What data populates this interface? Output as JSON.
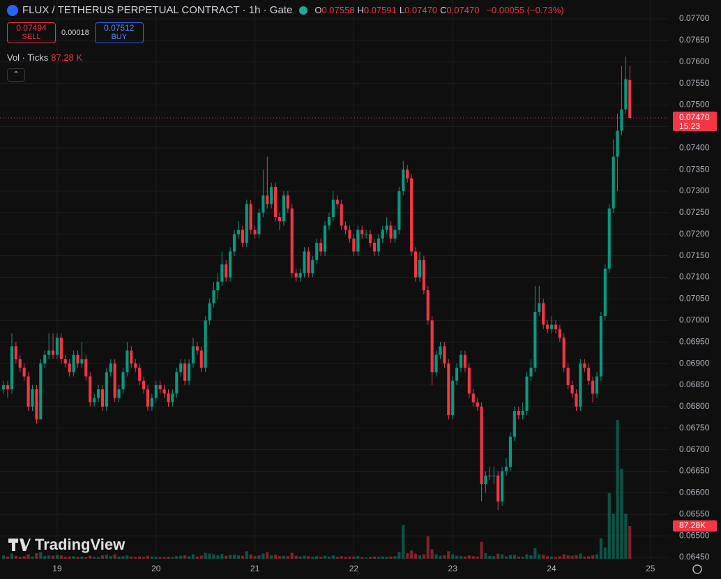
{
  "header": {
    "title": "FLUX / TETHERUS PERPETUAL CONTRACT · 1h · Gate",
    "ohlc": [
      {
        "key": "O",
        "value": "0.07558"
      },
      {
        "key": "H",
        "value": "0.07591"
      },
      {
        "key": "L",
        "value": "0.07470"
      },
      {
        "key": "C",
        "value": "0.07470"
      }
    ],
    "change": "−0.00055 (−0.73%)",
    "sell": {
      "price": "0.07494",
      "label": "SELL"
    },
    "spread": "0.00018",
    "buy": {
      "price": "0.07512",
      "label": "BUY"
    },
    "volume_legend": {
      "label": "Vol · Ticks",
      "value": "87.28 K"
    }
  },
  "brand": "TradingView",
  "chart_data": {
    "type": "candlestick",
    "up_color": "#089981",
    "down_color": "#f23645",
    "ylim": [
      0.0645,
      0.077
    ],
    "yticks": [
      {
        "value": 0.077,
        "label": "0.07700"
      },
      {
        "value": 0.0765,
        "label": "0.07650"
      },
      {
        "value": 0.076,
        "label": "0.07600"
      },
      {
        "value": 0.0755,
        "label": "0.07550"
      },
      {
        "value": 0.075,
        "label": "0.07500"
      },
      {
        "value": 0.0745,
        "label": "0.07450"
      },
      {
        "value": 0.074,
        "label": "0.07400"
      },
      {
        "value": 0.0735,
        "label": "0.07350"
      },
      {
        "value": 0.073,
        "label": "0.07300"
      },
      {
        "value": 0.0725,
        "label": "0.07250"
      },
      {
        "value": 0.072,
        "label": "0.07200"
      },
      {
        "value": 0.0715,
        "label": "0.07150"
      },
      {
        "value": 0.071,
        "label": "0.07100"
      },
      {
        "value": 0.0705,
        "label": "0.07050"
      },
      {
        "value": 0.07,
        "label": "0.07000"
      },
      {
        "value": 0.0695,
        "label": "0.06950"
      },
      {
        "value": 0.069,
        "label": "0.06900"
      },
      {
        "value": 0.0685,
        "label": "0.06850"
      },
      {
        "value": 0.068,
        "label": "0.06800"
      },
      {
        "value": 0.0675,
        "label": "0.06750"
      },
      {
        "value": 0.067,
        "label": "0.06700"
      },
      {
        "value": 0.0665,
        "label": "0.06650"
      },
      {
        "value": 0.066,
        "label": "0.06600"
      },
      {
        "value": 0.0655,
        "label": "0.06550"
      },
      {
        "value": 0.065,
        "label": "0.06500"
      },
      {
        "value": 0.0645,
        "label": "0.06450"
      }
    ],
    "xlim": [
      -0.87,
      161.6
    ],
    "xticks": [
      {
        "value": 13,
        "label": "19"
      },
      {
        "value": 37,
        "label": "20"
      },
      {
        "value": 61,
        "label": "21"
      },
      {
        "value": 85,
        "label": "22"
      },
      {
        "value": 109,
        "label": "23"
      },
      {
        "value": 133,
        "label": "24"
      },
      {
        "value": 157,
        "label": "25"
      }
    ],
    "volume_lim": [
      0,
      370000
    ],
    "grid": true,
    "last_price": {
      "value": 0.0747,
      "label": "0.07470"
    },
    "countdown": "15:23",
    "last_volume_label": "87.28K",
    "candles": [
      [
        0.0684,
        0.0686,
        0.0683,
        0.0685,
        9000
      ],
      [
        0.0685,
        0.0686,
        0.0682,
        0.0684,
        6000
      ],
      [
        0.0684,
        0.0697,
        0.0683,
        0.0694,
        14000
      ],
      [
        0.0694,
        0.0695,
        0.069,
        0.0691,
        8000
      ],
      [
        0.0691,
        0.0692,
        0.0688,
        0.0689,
        5000
      ],
      [
        0.0689,
        0.069,
        0.0686,
        0.0687,
        7000
      ],
      [
        0.0687,
        0.0688,
        0.0679,
        0.068,
        12000
      ],
      [
        0.068,
        0.0685,
        0.0679,
        0.0684,
        6000
      ],
      [
        0.0684,
        0.0685,
        0.0676,
        0.0677,
        15000
      ],
      [
        0.0677,
        0.0691,
        0.0677,
        0.069,
        18000
      ],
      [
        0.069,
        0.0693,
        0.0689,
        0.0692,
        7000
      ],
      [
        0.0692,
        0.0697,
        0.0691,
        0.0693,
        9000
      ],
      [
        0.0693,
        0.0697,
        0.0691,
        0.0692,
        8000
      ],
      [
        0.0692,
        0.0697,
        0.0691,
        0.0696,
        10000
      ],
      [
        0.0696,
        0.0697,
        0.069,
        0.0691,
        9000
      ],
      [
        0.0691,
        0.0692,
        0.0689,
        0.069,
        5000
      ],
      [
        0.069,
        0.0691,
        0.0687,
        0.0688,
        6000
      ],
      [
        0.0688,
        0.0693,
        0.0687,
        0.0692,
        7000
      ],
      [
        0.0692,
        0.0693,
        0.0689,
        0.069,
        5000
      ],
      [
        0.069,
        0.0695,
        0.0689,
        0.0691,
        6000
      ],
      [
        0.0691,
        0.0692,
        0.0686,
        0.0687,
        4000
      ],
      [
        0.0687,
        0.0688,
        0.068,
        0.0681,
        8000
      ],
      [
        0.0681,
        0.0683,
        0.068,
        0.0682,
        5000
      ],
      [
        0.0682,
        0.0685,
        0.0681,
        0.0684,
        4000
      ],
      [
        0.0684,
        0.0685,
        0.0679,
        0.068,
        9000
      ],
      [
        0.068,
        0.0689,
        0.0679,
        0.0688,
        11000
      ],
      [
        0.0688,
        0.0691,
        0.0687,
        0.069,
        7000
      ],
      [
        0.069,
        0.0691,
        0.0681,
        0.0682,
        12000
      ],
      [
        0.0682,
        0.0685,
        0.0681,
        0.0684,
        6000
      ],
      [
        0.0684,
        0.0689,
        0.0683,
        0.0688,
        7000
      ],
      [
        0.0688,
        0.0695,
        0.0687,
        0.0693,
        9000
      ],
      [
        0.0693,
        0.0694,
        0.0689,
        0.069,
        6000
      ],
      [
        0.069,
        0.0691,
        0.0688,
        0.0689,
        5000
      ],
      [
        0.0689,
        0.069,
        0.0685,
        0.0686,
        6000
      ],
      [
        0.0686,
        0.0687,
        0.0683,
        0.0684,
        5000
      ],
      [
        0.0684,
        0.0685,
        0.0679,
        0.068,
        8000
      ],
      [
        0.068,
        0.0683,
        0.0679,
        0.0682,
        6000
      ],
      [
        0.0682,
        0.0686,
        0.0681,
        0.0685,
        5000
      ],
      [
        0.0685,
        0.0686,
        0.0683,
        0.0684,
        4000
      ],
      [
        0.0684,
        0.0685,
        0.0682,
        0.0683,
        4000
      ],
      [
        0.0683,
        0.0684,
        0.068,
        0.0681,
        5000
      ],
      [
        0.0681,
        0.0684,
        0.068,
        0.0683,
        4000
      ],
      [
        0.0683,
        0.0689,
        0.0682,
        0.0688,
        7000
      ],
      [
        0.0688,
        0.0691,
        0.0687,
        0.069,
        8000
      ],
      [
        0.069,
        0.0691,
        0.0685,
        0.0686,
        9000
      ],
      [
        0.0686,
        0.0691,
        0.0685,
        0.069,
        7000
      ],
      [
        0.069,
        0.0696,
        0.0689,
        0.0694,
        12000
      ],
      [
        0.0694,
        0.0695,
        0.0692,
        0.0693,
        6000
      ],
      [
        0.0693,
        0.0694,
        0.0688,
        0.0689,
        8000
      ],
      [
        0.0689,
        0.0701,
        0.0688,
        0.07,
        16000
      ],
      [
        0.07,
        0.0705,
        0.0699,
        0.0704,
        14000
      ],
      [
        0.0704,
        0.0709,
        0.0703,
        0.0707,
        12000
      ],
      [
        0.0707,
        0.0711,
        0.0705,
        0.0709,
        9000
      ],
      [
        0.0709,
        0.0716,
        0.0708,
        0.0713,
        13000
      ],
      [
        0.0713,
        0.0714,
        0.0709,
        0.071,
        8000
      ],
      [
        0.071,
        0.0717,
        0.0709,
        0.0716,
        10000
      ],
      [
        0.0716,
        0.0721,
        0.0715,
        0.072,
        11000
      ],
      [
        0.072,
        0.0723,
        0.0719,
        0.0721,
        9000
      ],
      [
        0.0721,
        0.0722,
        0.0717,
        0.0718,
        8000
      ],
      [
        0.0718,
        0.0728,
        0.0717,
        0.0727,
        20000
      ],
      [
        0.0727,
        0.0728,
        0.072,
        0.0721,
        12000
      ],
      [
        0.0721,
        0.0722,
        0.0719,
        0.072,
        7000
      ],
      [
        0.072,
        0.0726,
        0.0719,
        0.0725,
        9000
      ],
      [
        0.0725,
        0.0735,
        0.0724,
        0.0729,
        14000
      ],
      [
        0.0729,
        0.0738,
        0.0726,
        0.0727,
        18000
      ],
      [
        0.0727,
        0.0732,
        0.0726,
        0.0731,
        9000
      ],
      [
        0.0731,
        0.0732,
        0.0723,
        0.0724,
        11000
      ],
      [
        0.0724,
        0.0725,
        0.0721,
        0.0723,
        7000
      ],
      [
        0.0723,
        0.073,
        0.0722,
        0.0729,
        8000
      ],
      [
        0.0729,
        0.073,
        0.0725,
        0.0726,
        7000
      ],
      [
        0.0726,
        0.0727,
        0.071,
        0.0711,
        16000
      ],
      [
        0.0711,
        0.0712,
        0.0709,
        0.071,
        8000
      ],
      [
        0.071,
        0.0712,
        0.0709,
        0.0711,
        6000
      ],
      [
        0.0711,
        0.0717,
        0.071,
        0.0716,
        8000
      ],
      [
        0.0716,
        0.0717,
        0.071,
        0.0711,
        7000
      ],
      [
        0.0711,
        0.0715,
        0.071,
        0.0714,
        5000
      ],
      [
        0.0714,
        0.0719,
        0.0713,
        0.0718,
        7000
      ],
      [
        0.0718,
        0.0719,
        0.0715,
        0.0716,
        5000
      ],
      [
        0.0716,
        0.0723,
        0.0715,
        0.0722,
        8000
      ],
      [
        0.0722,
        0.0725,
        0.0721,
        0.0724,
        6000
      ],
      [
        0.0724,
        0.073,
        0.0723,
        0.0728,
        9000
      ],
      [
        0.0728,
        0.0729,
        0.0726,
        0.0727,
        5000
      ],
      [
        0.0727,
        0.0728,
        0.0721,
        0.0722,
        7000
      ],
      [
        0.0722,
        0.0723,
        0.072,
        0.0721,
        5000
      ],
      [
        0.0721,
        0.0722,
        0.0718,
        0.0719,
        6000
      ],
      [
        0.0719,
        0.072,
        0.0715,
        0.0716,
        6000
      ],
      [
        0.0716,
        0.0722,
        0.0715,
        0.0721,
        7000
      ],
      [
        0.0721,
        0.0722,
        0.0719,
        0.072,
        4000
      ],
      [
        0.072,
        0.0721,
        0.0719,
        0.072,
        3000
      ],
      [
        0.072,
        0.0721,
        0.0717,
        0.0718,
        5000
      ],
      [
        0.0718,
        0.0719,
        0.0715,
        0.0716,
        6000
      ],
      [
        0.0716,
        0.072,
        0.0715,
        0.0719,
        5000
      ],
      [
        0.0719,
        0.0722,
        0.0718,
        0.0721,
        6000
      ],
      [
        0.0721,
        0.0724,
        0.072,
        0.0722,
        5000
      ],
      [
        0.0722,
        0.0723,
        0.0718,
        0.0719,
        6000
      ],
      [
        0.0719,
        0.0722,
        0.0718,
        0.0721,
        7000
      ],
      [
        0.0721,
        0.0731,
        0.072,
        0.073,
        18000
      ],
      [
        0.073,
        0.0737,
        0.0729,
        0.0735,
        90000
      ],
      [
        0.0735,
        0.0736,
        0.0732,
        0.0733,
        15000
      ],
      [
        0.0733,
        0.0734,
        0.0715,
        0.0716,
        22000
      ],
      [
        0.0716,
        0.0717,
        0.0709,
        0.071,
        14000
      ],
      [
        0.071,
        0.0716,
        0.0709,
        0.0714,
        9000
      ],
      [
        0.0714,
        0.0715,
        0.0706,
        0.0707,
        12000
      ],
      [
        0.0707,
        0.0708,
        0.0699,
        0.07,
        60000
      ],
      [
        0.07,
        0.0701,
        0.0685,
        0.0688,
        25000
      ],
      [
        0.0688,
        0.0693,
        0.0687,
        0.0692,
        12000
      ],
      [
        0.0692,
        0.0695,
        0.0691,
        0.0694,
        8000
      ],
      [
        0.0694,
        0.0695,
        0.0689,
        0.069,
        9000
      ],
      [
        0.069,
        0.0691,
        0.0677,
        0.0678,
        20000
      ],
      [
        0.0678,
        0.0687,
        0.0677,
        0.0686,
        12000
      ],
      [
        0.0686,
        0.069,
        0.0685,
        0.0689,
        8000
      ],
      [
        0.0689,
        0.0693,
        0.0688,
        0.0692,
        7000
      ],
      [
        0.0692,
        0.0693,
        0.0688,
        0.0689,
        6000
      ],
      [
        0.0689,
        0.069,
        0.0682,
        0.0683,
        9000
      ],
      [
        0.0683,
        0.0684,
        0.068,
        0.0681,
        7000
      ],
      [
        0.0681,
        0.0682,
        0.0679,
        0.068,
        6000
      ],
      [
        0.068,
        0.0681,
        0.0658,
        0.0662,
        45000
      ],
      [
        0.0662,
        0.0665,
        0.066,
        0.0664,
        15000
      ],
      [
        0.0664,
        0.0666,
        0.0663,
        0.0664,
        8000
      ],
      [
        0.0664,
        0.0666,
        0.0662,
        0.0664,
        7000
      ],
      [
        0.0664,
        0.0665,
        0.0656,
        0.0658,
        14000
      ],
      [
        0.0658,
        0.0666,
        0.0657,
        0.0665,
        12000
      ],
      [
        0.0665,
        0.0668,
        0.0664,
        0.0666,
        6000
      ],
      [
        0.0666,
        0.0674,
        0.0665,
        0.0673,
        10000
      ],
      [
        0.0673,
        0.068,
        0.0672,
        0.0679,
        11000
      ],
      [
        0.0679,
        0.068,
        0.0677,
        0.0678,
        6000
      ],
      [
        0.0678,
        0.0681,
        0.0677,
        0.0679,
        5000
      ],
      [
        0.0679,
        0.0688,
        0.0678,
        0.0687,
        12000
      ],
      [
        0.0687,
        0.0691,
        0.0686,
        0.0689,
        9000
      ],
      [
        0.0689,
        0.0708,
        0.0688,
        0.0702,
        28000
      ],
      [
        0.0702,
        0.0708,
        0.0701,
        0.0704,
        12000
      ],
      [
        0.0704,
        0.0705,
        0.0698,
        0.0699,
        10000
      ],
      [
        0.0699,
        0.07,
        0.0697,
        0.0698,
        7000
      ],
      [
        0.0698,
        0.0701,
        0.0697,
        0.0699,
        6000
      ],
      [
        0.0699,
        0.07,
        0.0697,
        0.0698,
        5000
      ],
      [
        0.0698,
        0.0699,
        0.0695,
        0.0696,
        7000
      ],
      [
        0.0696,
        0.0697,
        0.0688,
        0.0689,
        12000
      ],
      [
        0.0689,
        0.069,
        0.0684,
        0.0685,
        9000
      ],
      [
        0.0685,
        0.0686,
        0.0682,
        0.0683,
        8000
      ],
      [
        0.0683,
        0.0684,
        0.0679,
        0.068,
        10000
      ],
      [
        0.068,
        0.0691,
        0.0679,
        0.069,
        14000
      ],
      [
        0.069,
        0.0691,
        0.0688,
        0.0689,
        6000
      ],
      [
        0.0689,
        0.069,
        0.0685,
        0.0686,
        7000
      ],
      [
        0.0686,
        0.0687,
        0.0681,
        0.0683,
        9000
      ],
      [
        0.0683,
        0.0688,
        0.0682,
        0.0687,
        12000
      ],
      [
        0.0687,
        0.0702,
        0.0686,
        0.0701,
        55000
      ],
      [
        0.0701,
        0.0713,
        0.07,
        0.0712,
        30000
      ],
      [
        0.0712,
        0.0727,
        0.0711,
        0.0726,
        175000
      ],
      [
        0.0726,
        0.0742,
        0.0725,
        0.0738,
        120000
      ],
      [
        0.0738,
        0.0748,
        0.073,
        0.0744,
        370000
      ],
      [
        0.0744,
        0.0759,
        0.0743,
        0.0749,
        240000
      ],
      [
        0.0749,
        0.07612,
        0.0748,
        0.0756,
        120000
      ],
      [
        0.07558,
        0.07591,
        0.0747,
        0.0747,
        87280
      ]
    ]
  }
}
